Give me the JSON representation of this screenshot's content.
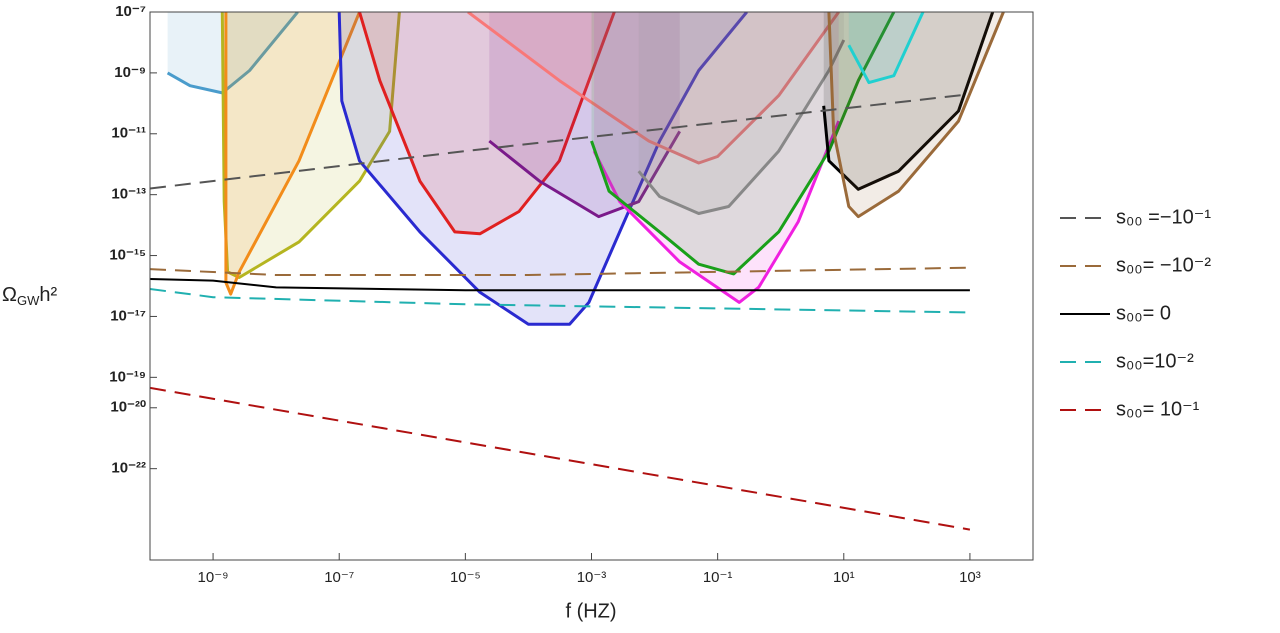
{
  "chart_data": {
    "type": "line",
    "x_label": "f (HZ)",
    "y_label": {
      "symbol": "Ω",
      "subscript": "GW",
      "rest": "h²"
    },
    "xscale": "log",
    "yscale": "log",
    "xlim": [
      1e-10,
      10000.0
    ],
    "ylim": [
      1e-25,
      1e-07
    ],
    "xticks": [
      {
        "value": 1e-09,
        "label": "10⁻⁹"
      },
      {
        "value": 1e-07,
        "label": "10⁻⁷"
      },
      {
        "value": 1e-05,
        "label": "10⁻⁵"
      },
      {
        "value": 0.001,
        "label": "10⁻³"
      },
      {
        "value": 0.1,
        "label": "10⁻¹"
      },
      {
        "value": 10,
        "label": "10¹"
      },
      {
        "value": 1000,
        "label": "10³"
      }
    ],
    "yticks": [
      {
        "value": 1e-07,
        "label": "10⁻⁷"
      },
      {
        "value": 1e-09,
        "label": "10⁻⁹"
      },
      {
        "value": 1e-11,
        "label": "10⁻¹¹"
      },
      {
        "value": 1e-13,
        "label": "10⁻¹³"
      },
      {
        "value": 1e-15,
        "label": "10⁻¹⁵"
      },
      {
        "value": 1e-17,
        "label": "10⁻¹⁷"
      },
      {
        "value": 1e-19,
        "label": "10⁻¹⁹"
      },
      {
        "value": 1e-20,
        "label": "10⁻²⁰"
      },
      {
        "value": 1e-22,
        "label": "10⁻²²"
      }
    ],
    "legend": "right",
    "series": [
      {
        "name": "s₀₀ =−10⁻¹",
        "color": "#555555",
        "dash": true,
        "x": [
          1e-10,
          1e-05,
          1000
        ],
        "values": [
          1.6e-13,
          2.7e-12,
          2e-10
        ]
      },
      {
        "name": "s₀₀= −10⁻²",
        "color": "#9a6a3a",
        "dash": true,
        "x": [
          1e-10,
          1e-08,
          0.0001,
          1000
        ],
        "values": [
          3.6e-16,
          2.3e-16,
          2.3e-16,
          4e-16
        ]
      },
      {
        "name": "s₀₀= 0",
        "color": "#000000",
        "dash": false,
        "x": [
          1e-10,
          1e-09,
          1e-08,
          1e-05,
          1000
        ],
        "values": [
          1.7e-16,
          1.5e-16,
          9e-17,
          7.2e-17,
          7.2e-17
        ]
      },
      {
        "name": "s₀₀=10⁻²",
        "color": "#20b0b0",
        "dash": true,
        "x": [
          1e-10,
          1e-09,
          1e-05,
          1000
        ],
        "values": [
          8e-17,
          4.3e-17,
          2.5e-17,
          1.35e-17
        ]
      },
      {
        "name": "s₀₀= 10⁻¹",
        "color": "#b01010",
        "dash": true,
        "x": [
          1e-10,
          1000
        ],
        "values": [
          4.5e-20,
          1e-24
        ]
      }
    ],
    "curves": [
      {
        "color": "#4a9ccc",
        "x": [
          1.9e-10,
          4.3e-10,
          1.4e-09,
          3.8e-09,
          2.2e-08
        ],
        "values": [
          1e-09,
          3.8e-10,
          2.2e-10,
          1.2e-09,
          1e-07
        ]
      },
      {
        "color": "#b5b520",
        "x": [
          1.4e-09,
          1.5e-09,
          1.7e-09,
          2.6e-09,
          2.3e-08,
          2.1e-07,
          6.3e-07,
          9e-07
        ],
        "values": [
          1e-07,
          5.9e-14,
          2.9e-16,
          1.9e-16,
          2.8e-15,
          2.8e-13,
          1.2e-11,
          1e-07
        ]
      },
      {
        "color": "#f28c1a",
        "x": [
          1.6e-09,
          1.6e-09,
          1.9e-09,
          2.6e-09,
          2.3e-08,
          2.1e-07
        ],
        "values": [
          1e-07,
          1.3e-16,
          5.4e-17,
          2.9e-16,
          1.3e-12,
          1e-07
        ]
      },
      {
        "color": "#2a2ad0",
        "x": [
          1e-07,
          1.1e-07,
          2.1e-07,
          1.9e-06,
          1.7e-05,
          0.0001,
          0.00045,
          0.00091,
          0.0028,
          0.012,
          0.05,
          0.29
        ],
        "values": [
          1e-07,
          1.2e-10,
          1.3e-12,
          6e-15,
          6.2e-17,
          5.5e-18,
          5.5e-18,
          2.9e-17,
          6e-15,
          5.8e-12,
          1.2e-09,
          1e-07
        ]
      },
      {
        "color": "#e02020",
        "x": [
          2.1e-07,
          4.4e-07,
          1.9e-06,
          6.8e-06,
          1.7e-05,
          7.1e-05,
          0.00031,
          0.00091,
          0.0023
        ],
        "values": [
          1e-07,
          5.6e-10,
          2.8e-13,
          6e-15,
          5.2e-15,
          2.8e-14,
          1.3e-12,
          5.6e-10,
          1e-07
        ]
      },
      {
        "color": "#7a1a8a",
        "x": [
          2.4e-05,
          0.00015,
          0.0013,
          0.0056,
          0.025
        ],
        "values": [
          5.8e-12,
          2.8e-13,
          1.9e-14,
          5.9e-14,
          1.2e-11
        ]
      },
      {
        "color": "#f87878",
        "x": [
          1.1e-05,
          0.00031,
          0.0081,
          0.05,
          0.1,
          0.93,
          8.3
        ],
        "values": [
          1e-07,
          5.6e-10,
          5.8e-12,
          1.1e-12,
          1.8e-12,
          1.8e-10,
          1e-07
        ]
      },
      {
        "color": "#f020e0",
        "x": [
          0.0011,
          0.0028,
          0.025,
          0.22,
          0.45,
          1.9,
          8.3
        ],
        "values": [
          2.7e-12,
          5.9e-14,
          6.2e-16,
          2.9e-17,
          9.1e-17,
          1.3e-14,
          2.6e-11
        ]
      },
      {
        "color": "#1aa01a",
        "x": [
          0.001,
          0.0019,
          0.012,
          0.05,
          0.18,
          0.93,
          5.8,
          17,
          62
        ],
        "values": [
          5.8e-12,
          1.3e-13,
          6e-15,
          5.2e-16,
          2.5e-16,
          6e-15,
          2.7e-12,
          5.6e-10,
          1e-07
        ]
      },
      {
        "color": "#888888",
        "x": [
          0.0056,
          0.012,
          0.05,
          0.15,
          0.93,
          5.8,
          10
        ],
        "values": [
          5.9e-13,
          8.7e-14,
          2.4e-14,
          4.1e-14,
          2.7e-12,
          1.2e-09,
          1.2e-08
        ]
      },
      {
        "color": "#000000",
        "x": [
          4.8,
          5.8,
          17,
          74,
          660,
          2300
        ],
        "values": [
          8.3e-11,
          1.3e-12,
          1.5e-13,
          5.9e-13,
          5.6e-11,
          1e-07
        ]
      },
      {
        "color": "#9a6a3a",
        "x": [
          5.8,
          6.9,
          12,
          17,
          74,
          660,
          3400
        ],
        "values": [
          1e-07,
          1.2e-11,
          4.1e-14,
          1.9e-14,
          1.3e-13,
          2.6e-11,
          1e-07
        ]
      },
      {
        "color": "#20d0d0",
        "x": [
          12,
          25,
          62,
          180
        ],
        "values": [
          8.1e-09,
          4.8e-10,
          8.1e-10,
          1e-07
        ]
      }
    ]
  }
}
